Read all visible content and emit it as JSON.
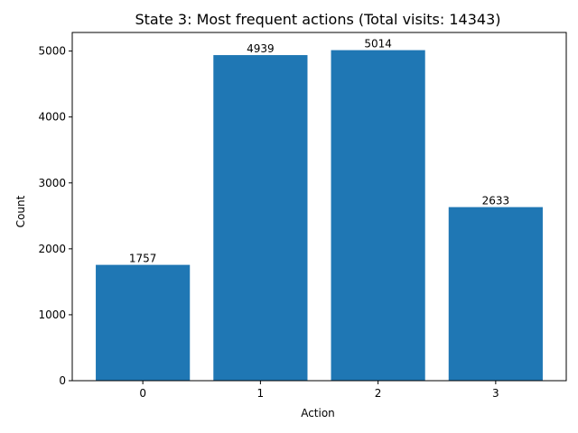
{
  "chart_data": {
    "type": "bar",
    "title": "State 3: Most frequent actions (Total visits: 14343)",
    "xlabel": "Action",
    "ylabel": "Count",
    "categories": [
      "0",
      "1",
      "2",
      "3"
    ],
    "values": [
      1757,
      4939,
      5014,
      2633
    ],
    "data_labels": [
      "1757",
      "4939",
      "5014",
      "2633"
    ],
    "ylim": [
      0,
      5282
    ],
    "yticks": [
      0,
      1000,
      2000,
      3000,
      4000,
      5000
    ],
    "grid": false,
    "bar_color": "#1f77b4"
  }
}
